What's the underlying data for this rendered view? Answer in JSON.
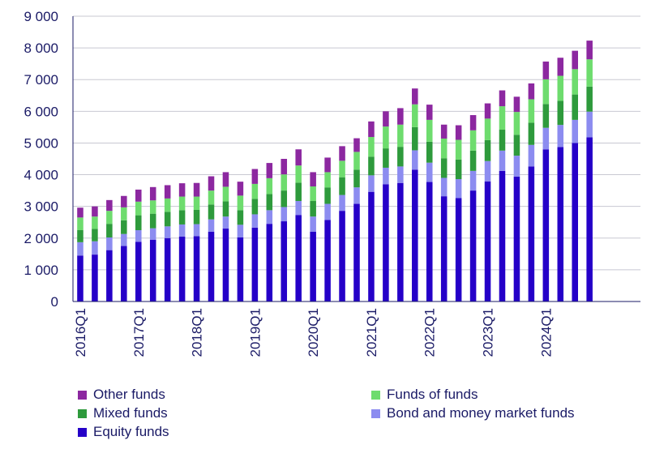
{
  "chart_data": {
    "type": "bar",
    "stacked": true,
    "x": [
      "2016Q1",
      "2016Q2",
      "2016Q3",
      "2016Q4",
      "2017Q1",
      "2017Q2",
      "2017Q3",
      "2017Q4",
      "2018Q1",
      "2018Q2",
      "2018Q3",
      "2018Q4",
      "2019Q1",
      "2019Q2",
      "2019Q3",
      "2019Q4",
      "2020Q1",
      "2020Q2",
      "2020Q3",
      "2020Q4",
      "2021Q1",
      "2021Q2",
      "2021Q3",
      "2021Q4",
      "2022Q1",
      "2022Q2",
      "2022Q3",
      "2022Q4",
      "2023Q1",
      "2023Q2",
      "2023Q3",
      "2023Q4",
      "2024Q1",
      "2024Q2",
      "2024Q3",
      "2024Q4",
      "2025Q1",
      "2025Q2",
      "2025Q3"
    ],
    "x_tick_labels": [
      "2016Q1",
      "2017Q1",
      "2018Q1",
      "2019Q1",
      "2020Q1",
      "2021Q1",
      "2022Q1",
      "2023Q1",
      "2024Q1"
    ],
    "x_tick_index": [
      0,
      4,
      8,
      12,
      16,
      20,
      24,
      28,
      32
    ],
    "ylim": [
      0,
      9000
    ],
    "y_ticks": [
      0,
      1000,
      2000,
      3000,
      4000,
      5000,
      6000,
      7000,
      8000,
      9000
    ],
    "y_tick_labels": [
      "0",
      "1 000",
      "2 000",
      "3 000",
      "4 000",
      "5 000",
      "6 000",
      "7 000",
      "8 000",
      "9 000"
    ],
    "title": "",
    "xlabel": "",
    "ylabel": "",
    "legend_position": "bottom",
    "series": [
      {
        "name": "Equity funds",
        "color": "#2500c8",
        "values": [
          1450,
          1480,
          1620,
          1750,
          1880,
          1950,
          2000,
          2050,
          2060,
          2200,
          2300,
          2020,
          2330,
          2450,
          2530,
          2730,
          2200,
          2570,
          2860,
          3080,
          3460,
          3700,
          3740,
          4160,
          3770,
          3320,
          3260,
          3500,
          3790,
          4120,
          3940,
          4260,
          4800,
          4870,
          5000,
          5180,
          0,
          0,
          0
        ]
      },
      {
        "name": "Bond and money market funds",
        "color": "#8c8cf0",
        "values": [
          420,
          420,
          400,
          380,
          370,
          360,
          370,
          380,
          380,
          390,
          380,
          400,
          420,
          430,
          450,
          440,
          480,
          510,
          500,
          520,
          520,
          520,
          520,
          610,
          610,
          580,
          600,
          620,
          640,
          640,
          660,
          680,
          680,
          700,
          730,
          810,
          0,
          0,
          0
        ]
      },
      {
        "name": "Mixed funds",
        "color": "#2e9a3c",
        "values": [
          380,
          390,
          430,
          430,
          470,
          460,
          460,
          450,
          450,
          470,
          480,
          460,
          490,
          510,
          520,
          580,
          490,
          520,
          560,
          560,
          590,
          610,
          620,
          730,
          660,
          620,
          620,
          640,
          660,
          660,
          660,
          700,
          750,
          760,
          800,
          790,
          0,
          0,
          0
        ]
      },
      {
        "name": "Funds of funds",
        "color": "#6edc6e",
        "values": [
          400,
          390,
          410,
          410,
          430,
          420,
          420,
          430,
          420,
          440,
          460,
          460,
          470,
          500,
          510,
          540,
          460,
          480,
          520,
          560,
          620,
          690,
          700,
          720,
          690,
          620,
          620,
          640,
          680,
          740,
          720,
          740,
          780,
          790,
          800,
          860,
          0,
          0,
          0
        ]
      },
      {
        "name": "Other funds",
        "color": "#8c28a0",
        "values": [
          310,
          320,
          340,
          360,
          380,
          420,
          420,
          420,
          430,
          450,
          460,
          440,
          470,
          480,
          490,
          510,
          450,
          460,
          460,
          430,
          490,
          480,
          520,
          500,
          480,
          440,
          460,
          480,
          480,
          500,
          480,
          500,
          560,
          570,
          580,
          590,
          0,
          0,
          0
        ]
      }
    ]
  },
  "legend": {
    "items": [
      {
        "label": "Other funds",
        "color": "#8c28a0"
      },
      {
        "label": "Funds of funds",
        "color": "#6edc6e"
      },
      {
        "label": "Mixed funds",
        "color": "#2e9a3c"
      },
      {
        "label": "Bond and money market funds",
        "color": "#8c8cf0"
      },
      {
        "label": "Equity funds",
        "color": "#2500c8"
      }
    ]
  }
}
